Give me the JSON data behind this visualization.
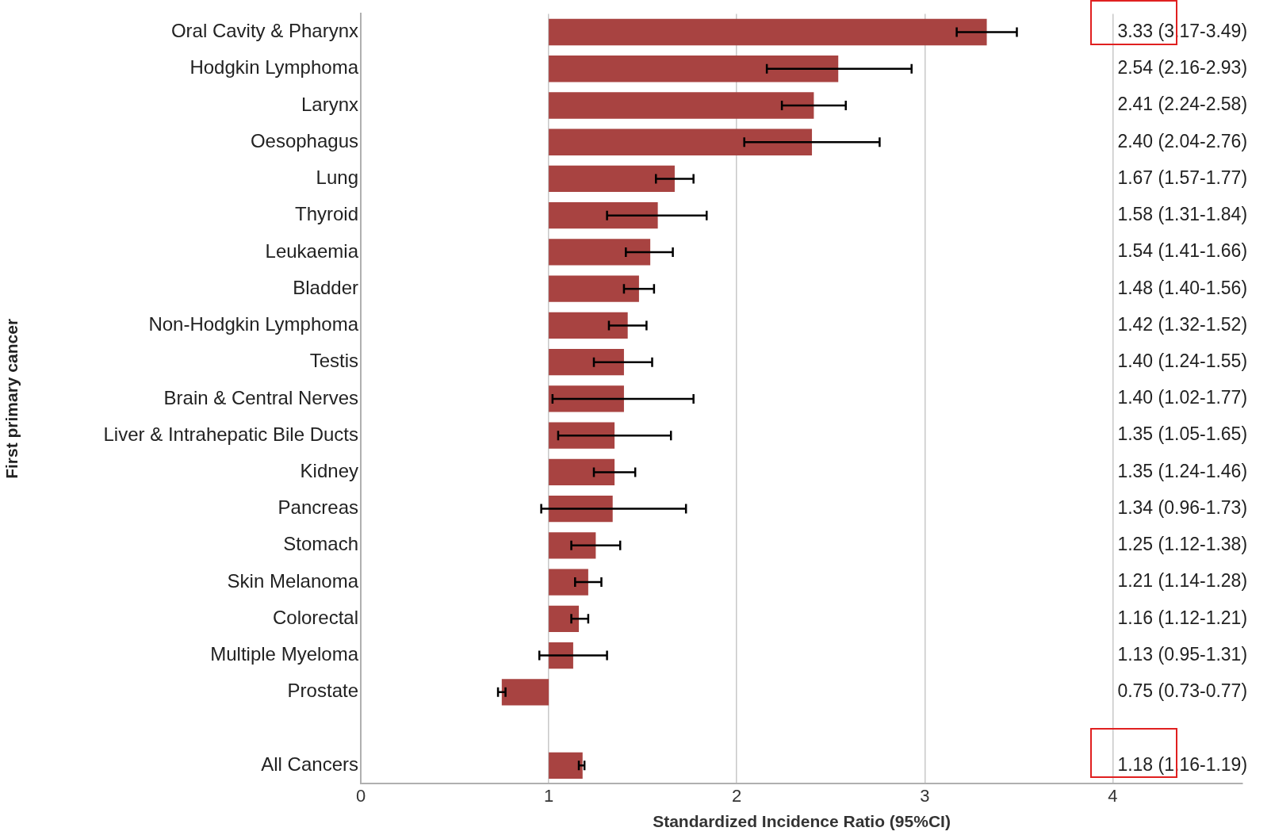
{
  "chart_data": {
    "type": "bar",
    "orientation": "horizontal",
    "xlabel": "Standardized Incidence Ratio (95%CI)",
    "ylabel": "First primary cancer",
    "categories": [
      "Oral Cavity & Pharynx",
      "Hodgkin Lymphoma",
      "Larynx",
      "Oesophagus",
      "Lung",
      "Thyroid",
      "Leukaemia",
      "Bladder",
      "Non-Hodgkin Lymphoma",
      "Testis",
      "Brain & Central Nerves",
      "Liver & Intrahepatic Bile Ducts",
      "Kidney",
      "Pancreas",
      "Stomach",
      "Skin Melanoma",
      "Colorectal",
      "Multiple Myeloma",
      "Prostate",
      null,
      "All Cancers"
    ],
    "base": [
      1,
      1,
      1,
      1,
      1,
      1,
      1,
      1,
      1,
      1,
      1,
      1,
      1,
      1,
      1,
      1,
      1,
      1,
      1,
      null,
      1
    ],
    "values": [
      2.33,
      1.54,
      1.41,
      1.4,
      0.67,
      0.58,
      0.54,
      0.48,
      0.42,
      0.4,
      0.4,
      0.35,
      0.35,
      0.34,
      0.25,
      0.21,
      0.16,
      0.13,
      -0.25,
      null,
      0.18
    ],
    "errors": [
      [
        3.17,
        3.49
      ],
      [
        2.16,
        2.93
      ],
      [
        2.24,
        2.58
      ],
      [
        2.04,
        2.76
      ],
      [
        1.57,
        1.77
      ],
      [
        1.31,
        1.84
      ],
      [
        1.41,
        1.66
      ],
      [
        1.4,
        1.56
      ],
      [
        1.32,
        1.52
      ],
      [
        1.24,
        1.55
      ],
      [
        1.02,
        1.77
      ],
      [
        1.05,
        1.65
      ],
      [
        1.24,
        1.46
      ],
      [
        0.96,
        1.73
      ],
      [
        1.12,
        1.38
      ],
      [
        1.14,
        1.28
      ],
      [
        1.12,
        1.21
      ],
      [
        0.95,
        1.31
      ],
      [
        0.73,
        0.77
      ],
      null,
      [
        1.16,
        1.19
      ]
    ],
    "annotations": [
      "3.33 (3.17-3.49)",
      "2.54 (2.16-2.93)",
      "2.41 (2.24-2.58)",
      "2.40 (2.04-2.76)",
      "1.67 (1.57-1.77)",
      "1.58 (1.31-1.84)",
      "1.54 (1.41-1.66)",
      "1.48 (1.40-1.56)",
      "1.42 (1.32-1.52)",
      "1.40 (1.24-1.55)",
      "1.40 (1.02-1.77)",
      "1.35 (1.05-1.65)",
      "1.35 (1.24-1.46)",
      "1.34 (0.96-1.73)",
      "1.25 (1.12-1.38)",
      "1.21 (1.14-1.28)",
      "1.16 (1.12-1.21)",
      "1.13 (0.95-1.31)",
      "0.75 (0.73-0.77)",
      null,
      "1.18 (1.16-1.19)"
    ],
    "color": "#a84341",
    "xlim": [
      0,
      4.69
    ],
    "xticks": [
      0,
      1,
      2,
      3,
      4
    ],
    "grid": "x"
  }
}
